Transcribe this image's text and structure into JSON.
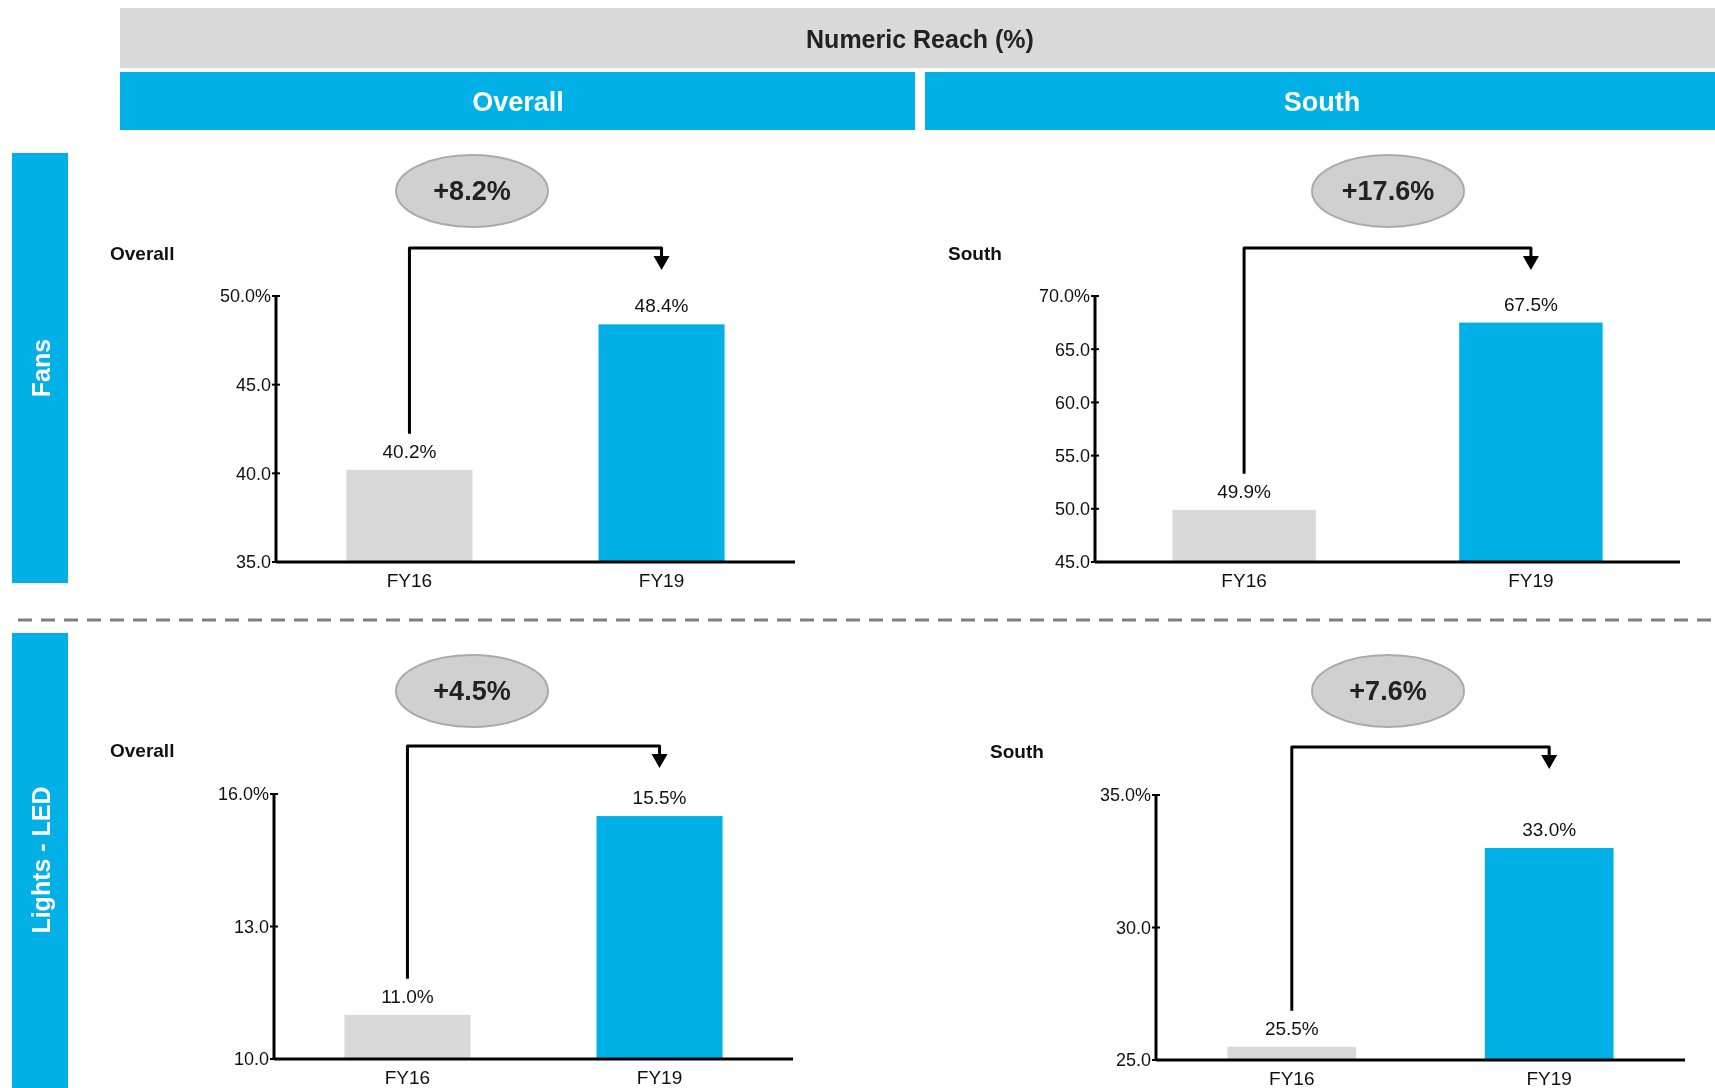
{
  "chart_data": [
    {
      "type": "other",
      "title": "Numeric Reach (%)",
      "annotations": [
        "Overall",
        "South",
        "Fans",
        "Lights - LED"
      ]
    },
    {
      "type": "bar",
      "title": "Overall",
      "categories": [
        "FY16",
        "FY19"
      ],
      "values": [
        40.2,
        48.4
      ],
      "colors": [
        "#d9d9d9",
        "#00b0e6"
      ],
      "value_labels": [
        "40.2%",
        "48.4%"
      ],
      "ylim": [
        35,
        50
      ],
      "yticks": [
        {
          "value": 35,
          "label": "35.0"
        },
        {
          "value": 40,
          "label": "40.0"
        },
        {
          "value": 45,
          "label": "45.0"
        },
        {
          "value": 50,
          "label": "50.0%"
        }
      ],
      "annotations": [
        "+8.2%"
      ]
    },
    {
      "type": "bar",
      "title": "South",
      "categories": [
        "FY16",
        "FY19"
      ],
      "values": [
        49.9,
        67.5
      ],
      "colors": [
        "#d9d9d9",
        "#00b0e6"
      ],
      "value_labels": [
        "49.9%",
        "67.5%"
      ],
      "ylim": [
        45,
        70
      ],
      "yticks": [
        {
          "value": 45,
          "label": "45.0"
        },
        {
          "value": 50,
          "label": "50.0"
        },
        {
          "value": 55,
          "label": "55.0"
        },
        {
          "value": 60,
          "label": "60.0"
        },
        {
          "value": 65,
          "label": "65.0"
        },
        {
          "value": 70,
          "label": "70.0%"
        }
      ],
      "annotations": [
        "+17.6%"
      ]
    },
    {
      "type": "bar",
      "title": "Overall",
      "categories": [
        "FY16",
        "FY19"
      ],
      "values": [
        11.0,
        15.5
      ],
      "colors": [
        "#d9d9d9",
        "#00b0e6"
      ],
      "value_labels": [
        "11.0%",
        "15.5%"
      ],
      "ylim": [
        10,
        16
      ],
      "yticks": [
        {
          "value": 10,
          "label": "10.0"
        },
        {
          "value": 13,
          "label": "13.0"
        },
        {
          "value": 16,
          "label": "16.0%"
        }
      ],
      "annotations": [
        "+4.5%"
      ]
    },
    {
      "type": "bar",
      "title": "South",
      "categories": [
        "FY16",
        "FY19"
      ],
      "values": [
        25.5,
        33.0
      ],
      "colors": [
        "#d9d9d9",
        "#00b0e6"
      ],
      "value_labels": [
        "25.5%",
        "33.0%"
      ],
      "ylim": [
        25,
        35
      ],
      "yticks": [
        {
          "value": 25,
          "label": "25.0"
        },
        {
          "value": 30,
          "label": "30.0"
        },
        {
          "value": 35,
          "label": "35.0%"
        }
      ],
      "annotations": [
        "+7.6%"
      ]
    }
  ]
}
